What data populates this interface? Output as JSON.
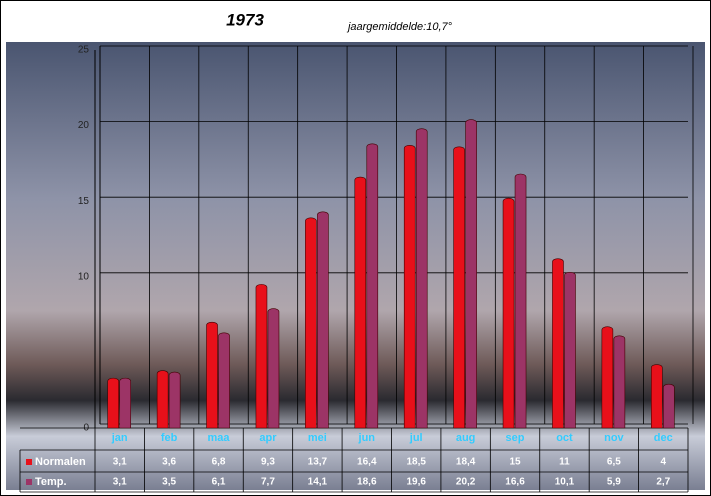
{
  "chart_data": {
    "type": "bar",
    "title": "1973",
    "subtitle": "jaargemiddelde:10,7°",
    "categories": [
      "jan",
      "feb",
      "maa",
      "apr",
      "mei",
      "jun",
      "jul",
      "aug",
      "sep",
      "oct",
      "nov",
      "dec"
    ],
    "series": [
      {
        "name": "Normalen",
        "color": "#e8101a",
        "values": [
          3.1,
          3.6,
          6.8,
          9.3,
          13.7,
          16.4,
          18.5,
          18.4,
          15,
          11,
          6.5,
          4
        ],
        "value_labels": [
          "3,1",
          "3,6",
          "6,8",
          "9,3",
          "13,7",
          "16,4",
          "18,5",
          "18,4",
          "15",
          "11",
          "6,5",
          "4"
        ]
      },
      {
        "name": "Temp.",
        "color": "#9c3466",
        "values": [
          3.1,
          3.5,
          6.1,
          7.7,
          14.1,
          18.6,
          19.6,
          20.2,
          16.6,
          10.1,
          5.9,
          2.7
        ],
        "value_labels": [
          "3,1",
          "3,5",
          "6,1",
          "7,7",
          "14,1",
          "18,6",
          "19,6",
          "20,2",
          "16,6",
          "10,1",
          "5,9",
          "2,7"
        ]
      }
    ],
    "ylim": [
      0,
      25
    ],
    "yticks": [
      0,
      10,
      15,
      20,
      25
    ],
    "grid": true
  }
}
